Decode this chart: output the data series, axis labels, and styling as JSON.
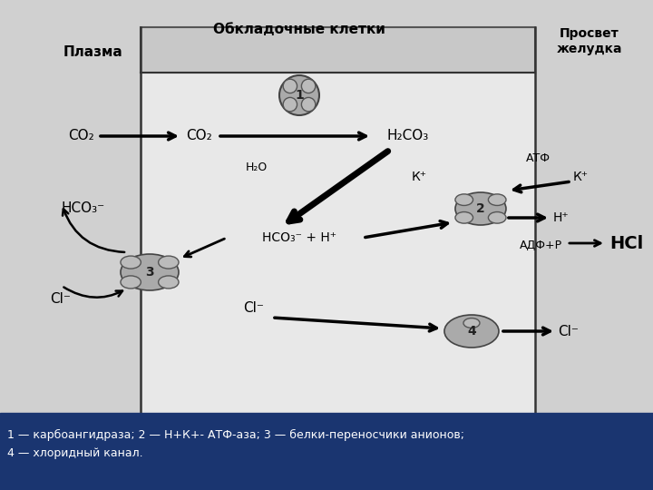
{
  "bg_color": "#d0d0d0",
  "cell_bg": "#e0e0e0",
  "membrane_bg": "#c0c0c0",
  "title_plasma": "Плазма",
  "title_cell": "Обкладочные клетки",
  "title_lumen": "Просвет\nжелудка",
  "caption": "1 — карбоангидраза; 2 — Н+К+- АТФ-аза; 3 — белки-переносчики анионов;\n4 — хлоридный канал.",
  "caption_bg": "#1a3570",
  "caption_fg": "#ffffff",
  "figsize": [
    7.2,
    5.4
  ],
  "dpi": 100
}
